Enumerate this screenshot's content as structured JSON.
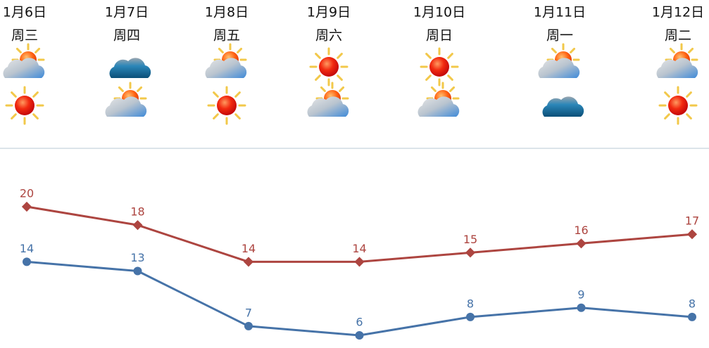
{
  "days": [
    {
      "date": "1月6日",
      "weekday": "周三",
      "color": "#111111"
    },
    {
      "date": "1月7日",
      "weekday": "周四",
      "color": "#111111"
    },
    {
      "date": "1月8日",
      "weekday": "周五",
      "color": "#111111"
    },
    {
      "date": "1月9日",
      "weekday": "周六",
      "color": "#c0282d"
    },
    {
      "date": "1月10日",
      "weekday": "周日",
      "color": "#c0282d"
    },
    {
      "date": "1月11日",
      "weekday": "周一",
      "color": "#111111"
    },
    {
      "date": "1月12日",
      "weekday": "周二",
      "color": "#111111"
    }
  ],
  "chart_data": {
    "type": "line",
    "series": [
      {
        "color": "#ad4540",
        "values": [
          20,
          18,
          14,
          14,
          15,
          16,
          17
        ]
      },
      {
        "color": "#4673a8",
        "values": [
          14,
          13,
          7,
          6,
          8,
          9,
          8
        ]
      }
    ]
  }
}
